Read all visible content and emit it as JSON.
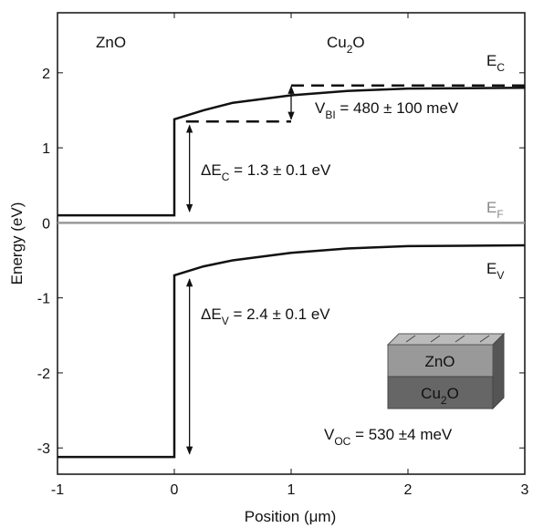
{
  "chart_data": {
    "type": "line",
    "xlabel": "Position (μm)",
    "ylabel": "Energy (eV)",
    "xlim": [
      -1,
      3
    ],
    "xticks": [
      -1,
      0,
      1,
      2,
      3
    ],
    "ylim": [
      -3.35,
      2.8
    ],
    "yticks": [
      -3,
      -2,
      -1,
      0,
      1,
      2
    ],
    "series": [
      {
        "color": "#111111",
        "x": [
          -1,
          0,
          0,
          0.25,
          0.5,
          1,
          1.5,
          2,
          3
        ],
        "values": [
          0.1,
          0.1,
          1.38,
          1.5,
          1.6,
          1.7,
          1.76,
          1.79,
          1.8
        ]
      },
      {
        "color": "#999999",
        "x": [
          -1,
          3
        ],
        "values": [
          0,
          0
        ]
      },
      {
        "color": "#111111",
        "x": [
          -1,
          0,
          0,
          0.25,
          0.5,
          1,
          1.5,
          2,
          3
        ],
        "values": [
          -3.12,
          -3.12,
          -0.7,
          -0.58,
          -0.5,
          -0.4,
          -0.34,
          -0.31,
          -0.3
        ]
      }
    ],
    "annotations": [
      {
        "parts": [
          "ZnO"
        ]
      },
      {
        "parts": [
          "Cu",
          "2",
          "O"
        ]
      },
      {
        "parts": [
          "E",
          "C"
        ]
      },
      {
        "parts": [
          "V",
          "BI",
          " = 480 ± 100 meV"
        ]
      },
      {
        "parts": [
          "ΔE",
          "C",
          " =  1.3 ± 0.1 eV"
        ]
      },
      {
        "parts": [
          "E",
          "F"
        ],
        "color": "#888888"
      },
      {
        "parts": [
          "E",
          "V"
        ]
      },
      {
        "parts": [
          "ΔE",
          "V",
          " =  2.4 ± 0.1 eV"
        ]
      },
      {
        "parts": [
          "V",
          "OC",
          " = 530 ±4 meV"
        ]
      }
    ],
    "inset": {
      "top": [
        "ZnO"
      ],
      "bottom": [
        "Cu",
        "2",
        "O"
      ]
    }
  }
}
